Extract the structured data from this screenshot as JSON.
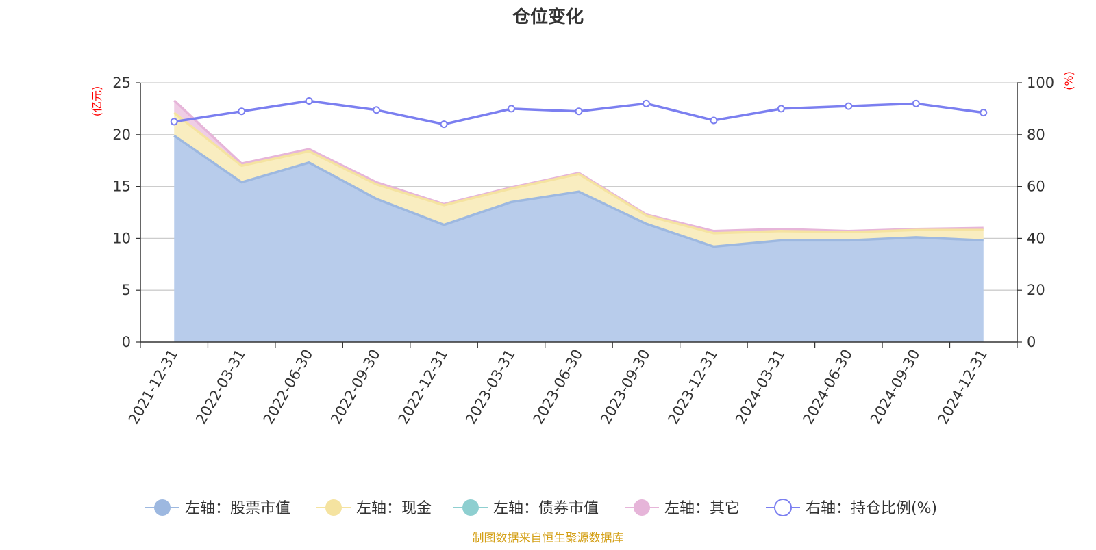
{
  "chart_data": {
    "type": "area",
    "title": "仓位变化",
    "source": "制图数据来自恒生聚源数据库",
    "left_axis_label": "(亿元)",
    "right_axis_label": "(%)",
    "left_ylim": [
      0,
      25
    ],
    "left_ticks": [
      0,
      5,
      10,
      15,
      20,
      25
    ],
    "right_ylim": [
      0,
      100
    ],
    "right_ticks": [
      0,
      20,
      40,
      60,
      80,
      100
    ],
    "categories": [
      "2021-12-31",
      "2022-03-31",
      "2022-06-30",
      "2022-09-30",
      "2022-12-31",
      "2023-03-31",
      "2023-06-30",
      "2023-09-30",
      "2023-12-31",
      "2024-03-31",
      "2024-06-30",
      "2024-09-30",
      "2024-12-31"
    ],
    "series": [
      {
        "name": "左轴：股票市值",
        "axis": "left",
        "stack": true,
        "color": "#9db8e0",
        "fill": "#b8cceb",
        "values": [
          19.9,
          15.4,
          17.3,
          13.8,
          11.3,
          13.5,
          14.5,
          11.4,
          9.2,
          9.8,
          9.8,
          10.1,
          9.8
        ]
      },
      {
        "name": "左轴：现金",
        "axis": "left",
        "stack": true,
        "color": "#f5e3a0",
        "fill": "#f9edc0",
        "values": [
          2.2,
          1.6,
          1.1,
          1.4,
          1.9,
          1.3,
          1.7,
          0.8,
          1.3,
          0.9,
          0.8,
          0.7,
          1.0
        ]
      },
      {
        "name": "左轴：债券市值",
        "axis": "left",
        "stack": true,
        "color": "#8ecfd0",
        "fill": "#b3e0e0",
        "values": [
          0,
          0,
          0,
          0,
          0,
          0,
          0,
          0,
          0,
          0,
          0,
          0,
          0
        ]
      },
      {
        "name": "左轴：其它",
        "axis": "left",
        "stack": true,
        "color": "#e6b5d9",
        "fill": "#efcde5",
        "values": [
          1.2,
          0.2,
          0.2,
          0.2,
          0.1,
          0.1,
          0.1,
          0.1,
          0.2,
          0.2,
          0.1,
          0.1,
          0.2
        ]
      },
      {
        "name": "右轴：持仓比例(%)",
        "axis": "right",
        "stack": false,
        "color": "#7b7ff0",
        "values": [
          85,
          89,
          93,
          89.5,
          84,
          90,
          89,
          92,
          85.5,
          90,
          91,
          92,
          88.5
        ]
      }
    ],
    "grid": true,
    "legend_position": "bottom"
  }
}
